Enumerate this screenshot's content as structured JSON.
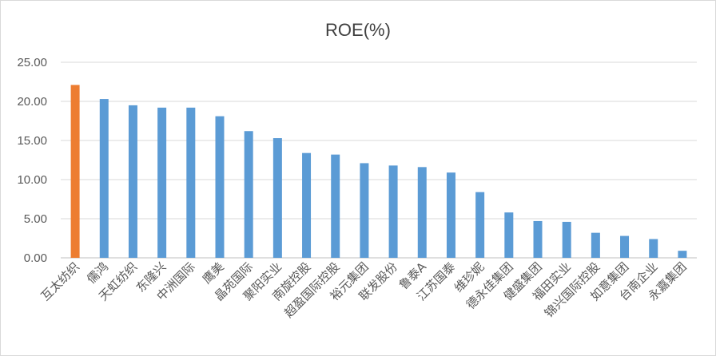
{
  "chart_data": {
    "type": "bar",
    "title": "ROE(%)",
    "xlabel": "",
    "ylabel": "",
    "ylim": [
      0,
      25
    ],
    "yticks": [
      "0.00",
      "5.00",
      "10.00",
      "15.00",
      "20.00",
      "25.00"
    ],
    "grid": true,
    "legend": "none",
    "categories": [
      "互太纺织",
      "儒鸿",
      "天虹纺织",
      "东隆兴",
      "中洲国际",
      "鹰美",
      "晶苑国际",
      "聚阳实业",
      "南旋控股",
      "超盈国际控股",
      "裕元集团",
      "联发股份",
      "鲁泰A",
      "江苏国泰",
      "维珍妮",
      "德永佳集团",
      "健盛集团",
      "福田实业",
      "锦兴国际控股",
      "如意集团",
      "台南企业",
      "永嘉集团"
    ],
    "values": [
      22.1,
      20.3,
      19.5,
      19.2,
      19.2,
      18.1,
      16.2,
      15.3,
      13.4,
      13.2,
      12.1,
      11.8,
      11.6,
      10.9,
      8.4,
      5.8,
      4.7,
      4.6,
      3.2,
      2.8,
      2.4,
      0.9
    ],
    "colors": {
      "highlight": "#ED7D31",
      "default": "#5B9BD5",
      "grid": "#d9d9d9",
      "axis": "#bfbfbf"
    },
    "highlight_index": 0
  }
}
